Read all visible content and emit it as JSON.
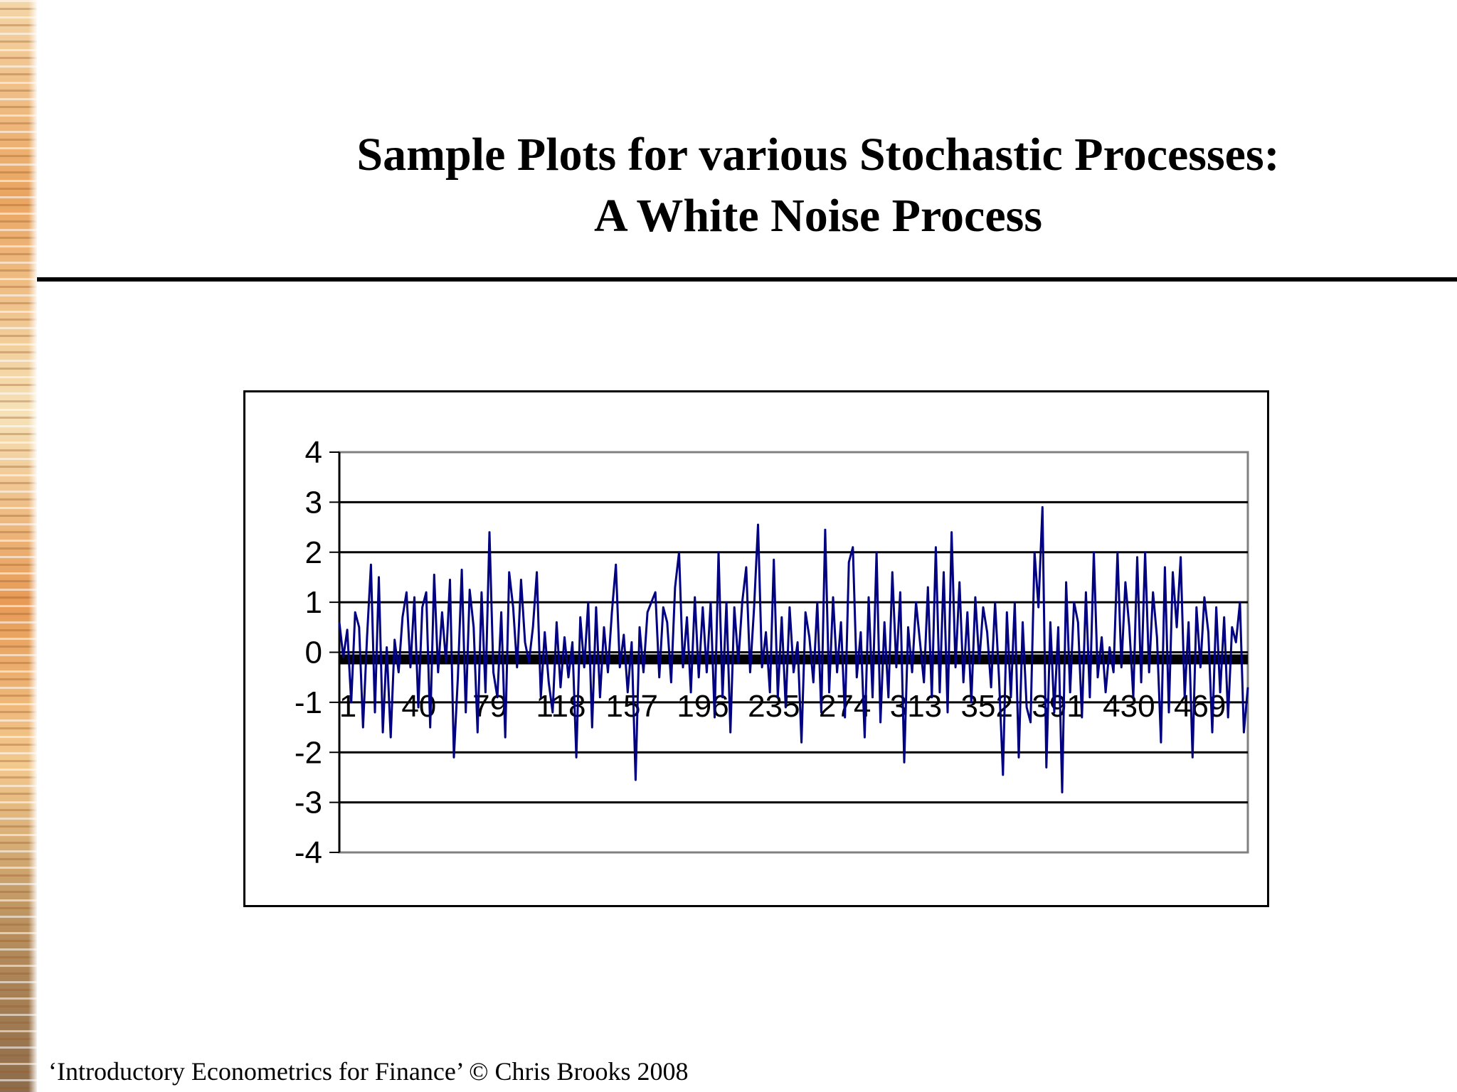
{
  "slide": {
    "title_line1": "Sample Plots for various Stochastic Processes:",
    "title_line2": "A White Noise Process",
    "footer": "‘Introductory Econometrics for Finance’ © Chris Brooks 2008"
  },
  "colors": {
    "series": "#000080",
    "gridline": "#000000",
    "plot_border": "#808080"
  },
  "chart_data": {
    "type": "line",
    "title": "",
    "xlabel": "",
    "ylabel": "",
    "ylim": [
      -4,
      4
    ],
    "yticks": [
      4,
      3,
      2,
      1,
      0,
      -1,
      -2,
      -3,
      -4
    ],
    "xlim": [
      1,
      500
    ],
    "xticks": [
      1,
      40,
      79,
      118,
      157,
      196,
      235,
      274,
      313,
      352,
      391,
      430,
      469
    ],
    "grid": true,
    "legend": "none",
    "series": [
      {
        "values": [
          0.6,
          -0.1,
          0.45,
          -1.0,
          0.8,
          0.5,
          -1.5,
          0.3,
          1.75,
          -1.2,
          1.5,
          -1.6,
          0.1,
          -1.7,
          0.25,
          -0.4,
          0.7,
          1.2,
          -0.3,
          1.1,
          -1.1,
          0.9,
          1.2,
          -1.5,
          1.55,
          -0.4,
          0.8,
          -0.2,
          1.45,
          -2.1,
          -0.5,
          1.65,
          -1.2,
          1.25,
          0.5,
          -1.6,
          1.2,
          -0.8,
          2.4,
          -0.4,
          -0.9,
          0.8,
          -1.7,
          1.6,
          0.9,
          -0.3,
          1.45,
          0.2,
          -0.2,
          0.5,
          1.6,
          -0.9,
          0.4,
          -0.6,
          -1.2,
          0.6,
          -0.7,
          0.3,
          -0.5,
          0.2,
          -2.1,
          0.7,
          -0.3,
          1.0,
          -1.5,
          0.9,
          -0.9,
          0.5,
          -0.4,
          0.8,
          1.75,
          -0.3,
          0.35,
          -0.8,
          0.2,
          -2.55,
          0.5,
          -0.4,
          0.8,
          1.0,
          1.2,
          -0.5,
          0.9,
          0.6,
          -0.6,
          1.3,
          2.0,
          -0.3,
          0.7,
          -0.8,
          1.1,
          -0.5,
          0.9,
          -0.4,
          1.0,
          -1.3,
          2.0,
          -0.9,
          1.0,
          -1.6,
          0.9,
          -0.2,
          1.0,
          1.7,
          -0.4,
          0.9,
          2.55,
          -0.3,
          0.4,
          -0.8,
          1.85,
          -0.9,
          0.7,
          -1.1,
          0.9,
          -0.4,
          0.2,
          -1.8,
          0.8,
          0.3,
          -0.6,
          1.0,
          -1.2,
          2.45,
          -0.8,
          1.1,
          -0.4,
          0.6,
          -1.3,
          1.8,
          2.1,
          -0.5,
          0.4,
          -1.7,
          1.1,
          -0.9,
          2.0,
          -1.4,
          0.6,
          -0.9,
          1.6,
          -0.3,
          1.2,
          -2.2,
          0.5,
          -0.4,
          1.0,
          0.2,
          -0.6,
          1.3,
          -0.9,
          2.1,
          -0.8,
          1.6,
          -1.2,
          2.4,
          -0.3,
          1.4,
          -0.6,
          0.8,
          -1.0,
          1.1,
          -0.2,
          0.9,
          0.4,
          -0.7,
          1.0,
          -0.5,
          -2.45,
          0.8,
          -0.9,
          1.0,
          -2.1,
          0.6,
          -1.1,
          -1.4,
          2.0,
          0.9,
          2.9,
          -2.3,
          0.6,
          -1.2,
          0.5,
          -2.8,
          1.4,
          -0.8,
          1.0,
          0.6,
          -1.3,
          1.2,
          -0.9,
          2.0,
          -0.5,
          0.3,
          -0.8,
          0.1,
          -0.4,
          2.0,
          -0.3,
          1.4,
          0.5,
          -0.9,
          1.9,
          -0.6,
          2.0,
          -0.4,
          1.2,
          0.3,
          -1.8,
          1.7,
          -1.2,
          1.6,
          0.5,
          1.9,
          -0.9,
          0.6,
          -2.1,
          0.9,
          -0.3,
          1.1,
          0.4,
          -1.6,
          0.9,
          -0.8,
          0.7,
          -1.3,
          0.5,
          0.2,
          1.0,
          -1.6,
          -0.7
        ]
      }
    ]
  }
}
